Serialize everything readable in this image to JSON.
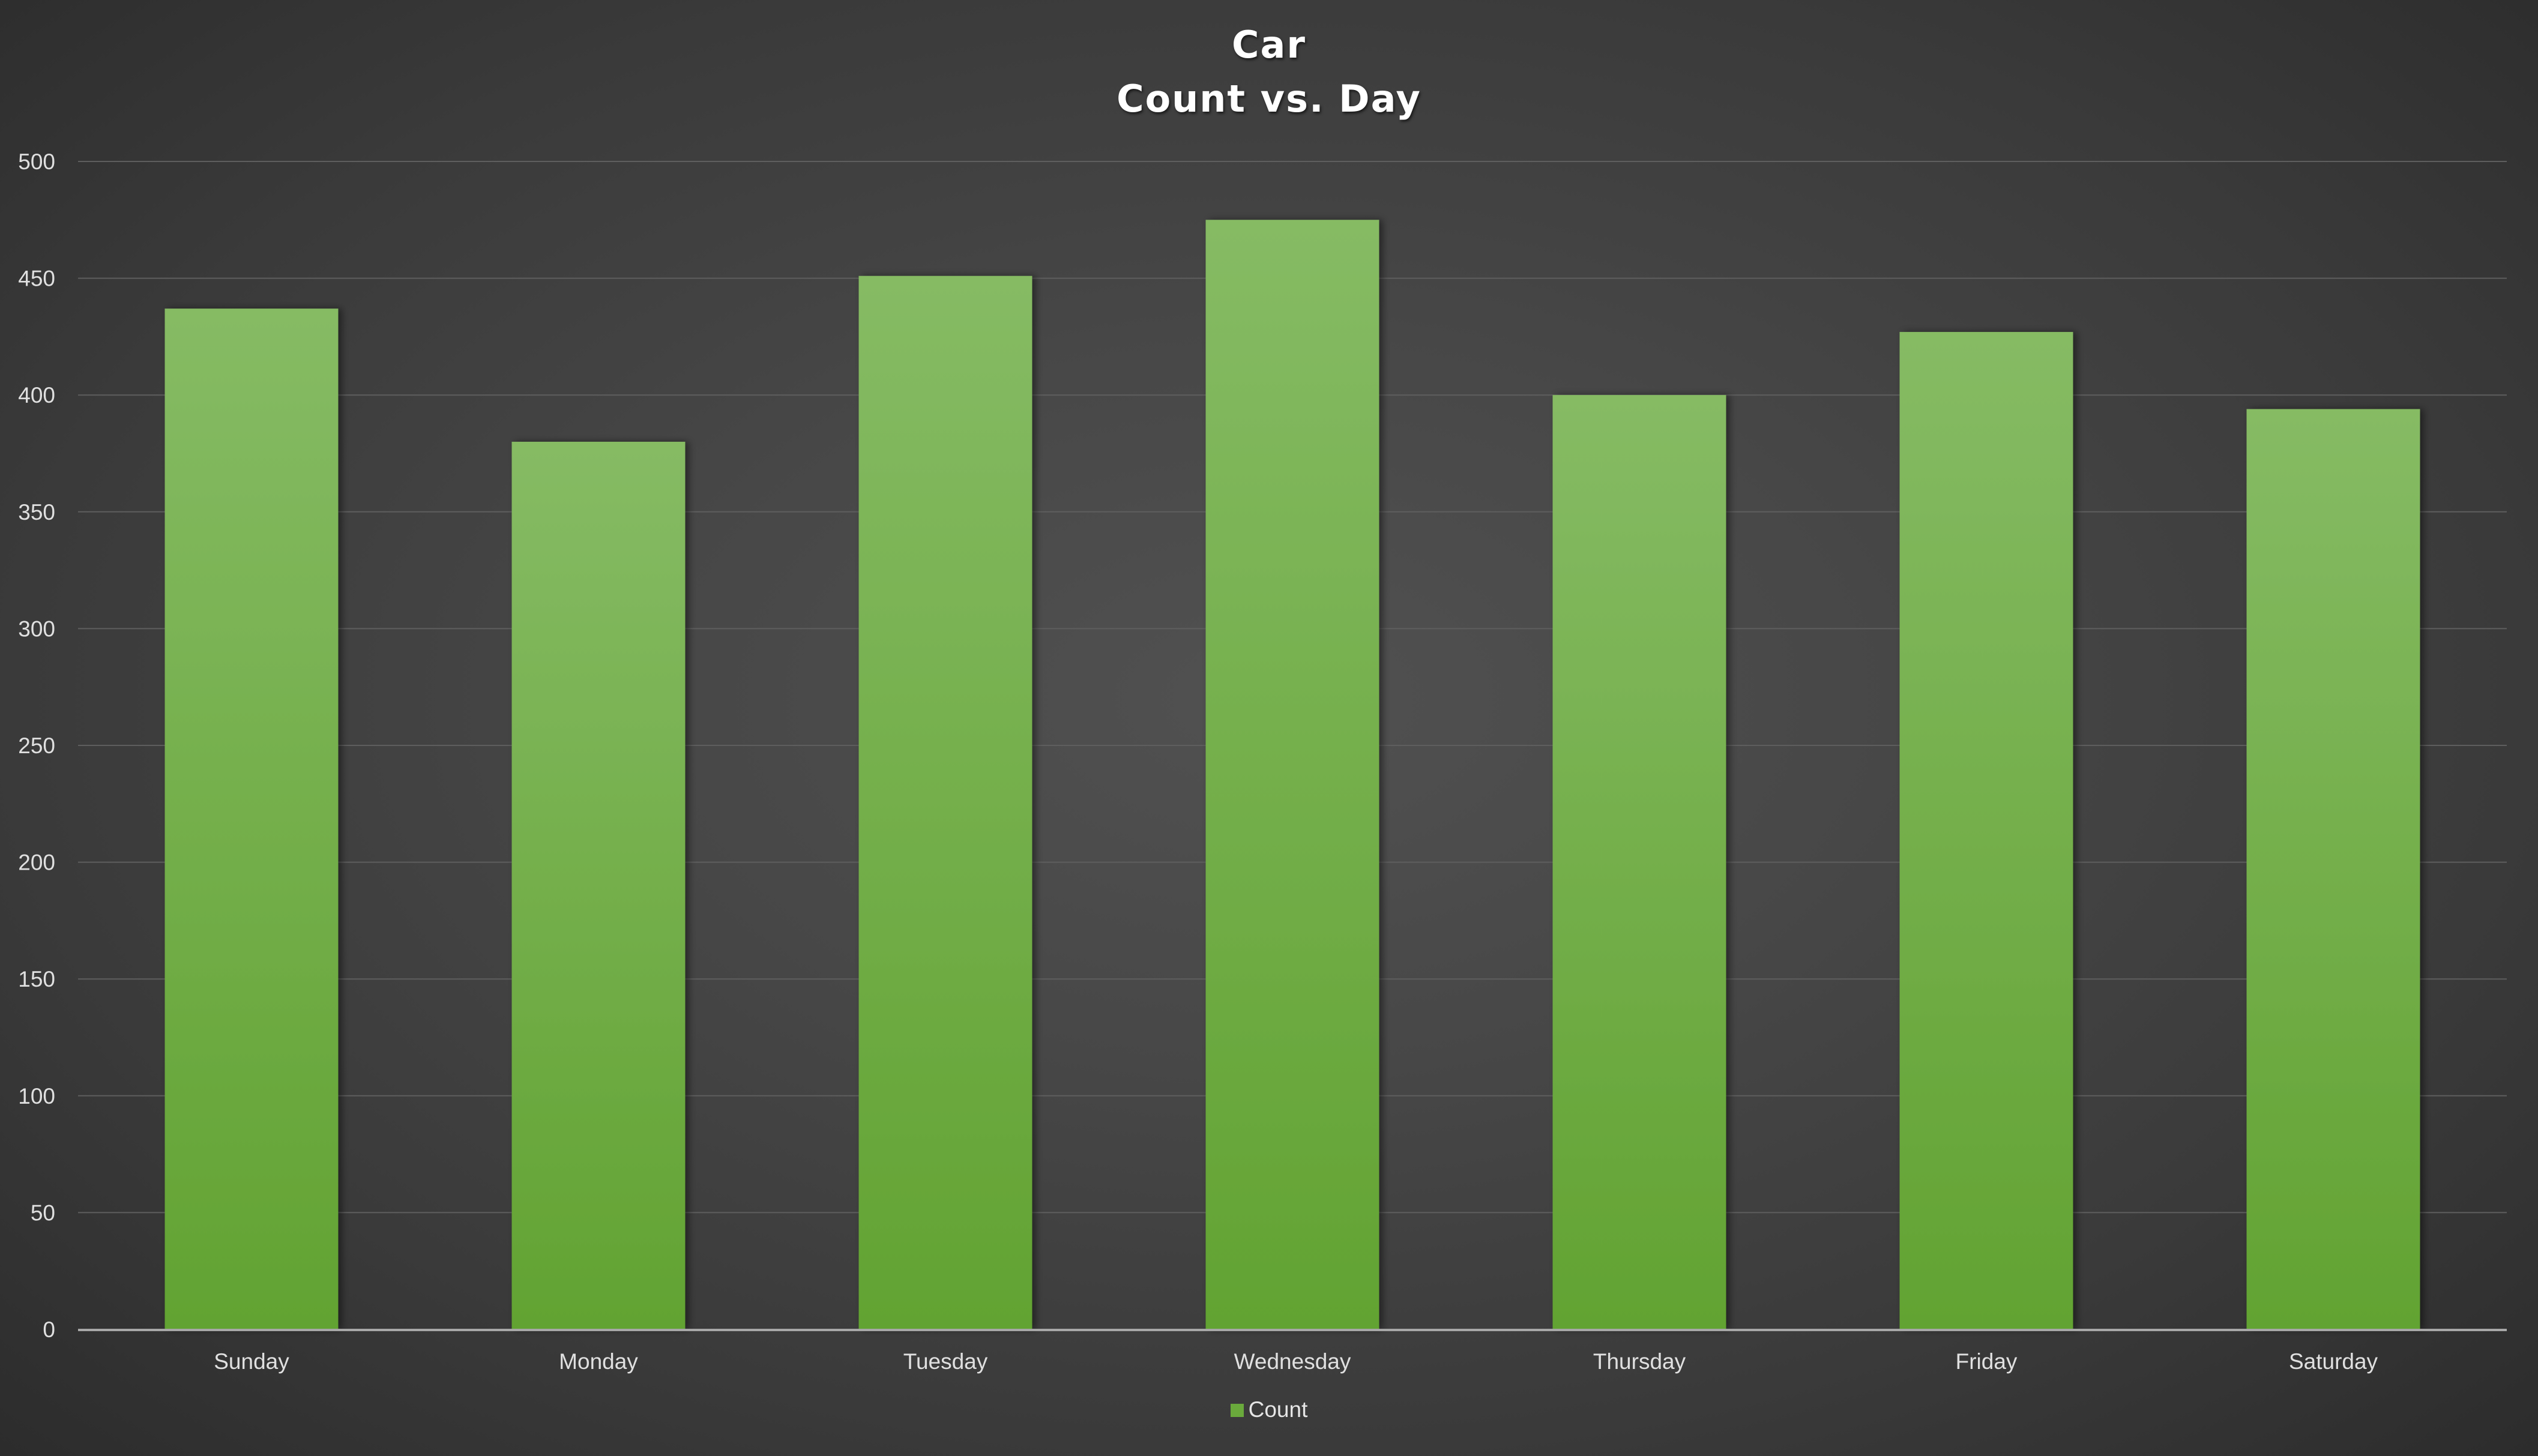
{
  "chart_data": {
    "type": "bar",
    "title_lines": [
      "Car",
      "Count vs. Day"
    ],
    "categories": [
      "Sunday",
      "Monday",
      "Tuesday",
      "Wednesday",
      "Thursday",
      "Friday",
      "Saturday"
    ],
    "series": [
      {
        "name": "Count",
        "values": [
          437,
          380,
          451,
          475,
          400,
          427,
          394
        ]
      }
    ],
    "xlabel": "",
    "ylabel": "",
    "ylim": [
      0,
      500
    ],
    "yticks": [
      0,
      50,
      100,
      150,
      200,
      250,
      300,
      350,
      400,
      450,
      500
    ],
    "grid": true,
    "legend": "bottom",
    "colors": {
      "bar_top": "#86bb64",
      "bar_bottom": "#62a332",
      "legend_swatch": "#6aaa3c",
      "gridline": "#5e5e5e",
      "axis_line": "#a8a8a8"
    }
  }
}
